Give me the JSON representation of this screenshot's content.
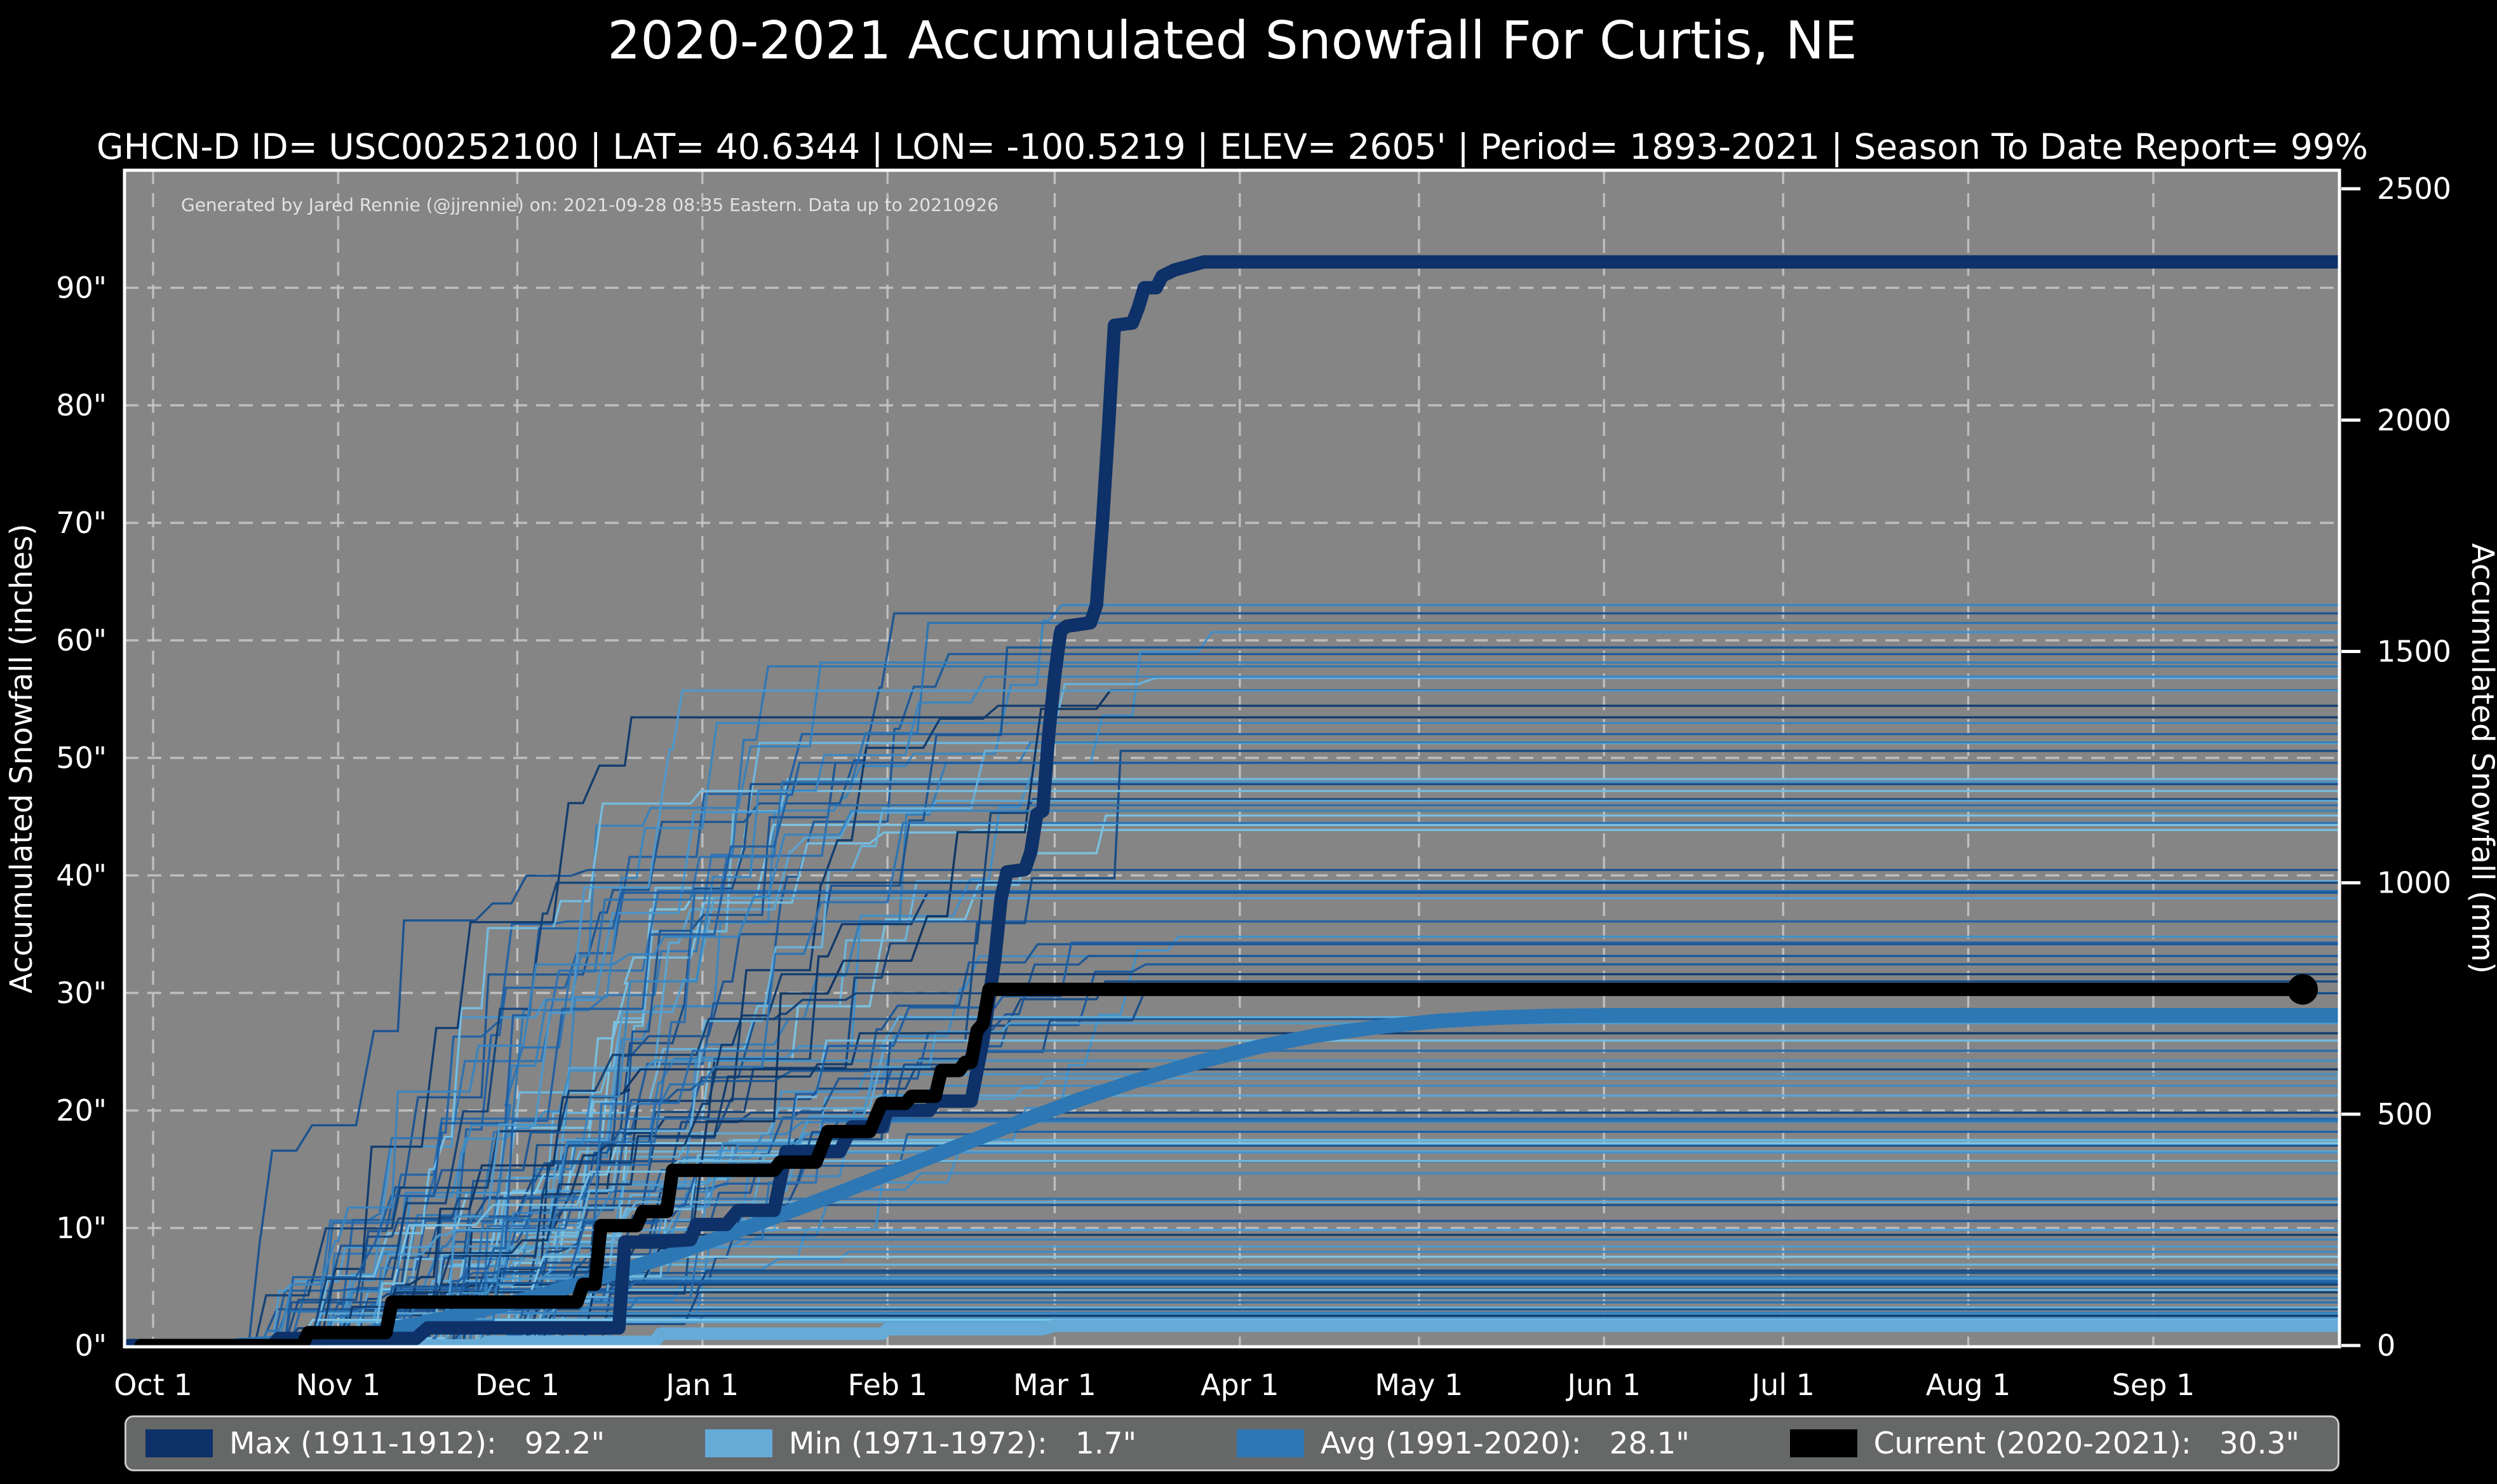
{
  "title": "2020-2021 Accumulated Snowfall For Curtis, NE",
  "subtitle": "GHCN-D ID= USC00252100 | LAT= 40.6344 | LON= -100.5219 | ELEV= 2605' | Period= 1893-2021 | Season To Date Report= 99%",
  "annotation": "Generated by Jared Rennie (@jjrennie) on: 2021-09-28 08:35 Eastern. Data up to 20210926",
  "colors": {
    "figure_bg": "#000000",
    "plot_bg": "#858585",
    "grid": "#c8c8c8",
    "spine": "#ffffff",
    "text": "#ffffff",
    "annotation_text": "#e2e2e2",
    "legend_bg": "#666767",
    "legend_border": "#c9c9c9",
    "max_line": "#0d3168",
    "min_line": "#66abd8",
    "avg_line": "#2d77b5",
    "current_line": "#000000"
  },
  "axes": {
    "left": {
      "title": "Accumulated Snowfall (inches)",
      "tick_values": [
        0,
        10,
        20,
        30,
        40,
        50,
        60,
        70,
        80,
        90
      ],
      "tick_labels": [
        "0\"",
        "10\"",
        "20\"",
        "30\"",
        "40\"",
        "50\"",
        "60\"",
        "70\"",
        "80\"",
        "90\""
      ]
    },
    "right": {
      "title": "Accumulated Snowfall (mm)",
      "tick_values": [
        0,
        500,
        1000,
        1500,
        2000,
        2500
      ],
      "tick_labels": [
        "0",
        "500",
        "1000",
        "1500",
        "2000",
        "2500"
      ]
    },
    "x": {
      "tick_days": [
        0,
        31,
        61,
        92,
        123,
        151,
        182,
        212,
        243,
        273,
        304,
        335
      ],
      "tick_labels": [
        "Oct 1",
        "Nov 1",
        "Dec 1",
        "Jan 1",
        "Feb 1",
        "Mar 1",
        "Apr 1",
        "May 1",
        "Jun 1",
        "Jul 1",
        "Aug 1",
        "Sep 1"
      ]
    }
  },
  "legend": {
    "items": [
      {
        "label": "Max (1911-1912):",
        "value": "92.2\"",
        "color": "#0d3168"
      },
      {
        "label": "Min (1971-1972):",
        "value": "1.7\"",
        "color": "#66abd8"
      },
      {
        "label": "Avg (1991-2020):",
        "value": "28.1\"",
        "color": "#2d77b5"
      },
      {
        "label": "Current (2020-2021):",
        "value": "30.3\"",
        "color": "#000000"
      }
    ]
  },
  "chart_data": {
    "type": "line",
    "x_unit": "days since Oct 1",
    "x_range_days": [
      -5,
      366
    ],
    "y_range_inches": [
      0,
      100
    ],
    "y_right_unit": "mm (25.4 mm per inch)",
    "grid": true,
    "series": [
      {
        "name": "min-1971-1972",
        "color": "#66abd8",
        "width": 20,
        "points": [
          [
            -4,
            0
          ],
          [
            55,
            0
          ],
          [
            56,
            0.3
          ],
          [
            84,
            0.3
          ],
          [
            85,
            1.0
          ],
          [
            122,
            1.0
          ],
          [
            123,
            1.4
          ],
          [
            149,
            1.4
          ],
          [
            151,
            1.7
          ],
          [
            366,
            1.7
          ]
        ]
      },
      {
        "name": "avg-1991-2020",
        "color": "#2d77b5",
        "width": 23,
        "points": [
          [
            14,
            0
          ],
          [
            25,
            0.4
          ],
          [
            35,
            1.0
          ],
          [
            45,
            1.9
          ],
          [
            55,
            3.0
          ],
          [
            65,
            4.3
          ],
          [
            75,
            5.8
          ],
          [
            85,
            7.4
          ],
          [
            95,
            9.2
          ],
          [
            105,
            11.1
          ],
          [
            115,
            13.0
          ],
          [
            125,
            15.0
          ],
          [
            135,
            17.0
          ],
          [
            145,
            19.0
          ],
          [
            155,
            20.9
          ],
          [
            165,
            22.6
          ],
          [
            175,
            24.1
          ],
          [
            185,
            25.4
          ],
          [
            195,
            26.4
          ],
          [
            205,
            27.1
          ],
          [
            215,
            27.6
          ],
          [
            225,
            27.9
          ],
          [
            235,
            28.05
          ],
          [
            245,
            28.1
          ],
          [
            366,
            28.1
          ]
        ]
      },
      {
        "name": "max-1911-1912",
        "color": "#0d3168",
        "width": 21,
        "points": [
          [
            -4,
            0
          ],
          [
            20,
            0
          ],
          [
            21,
            0.6
          ],
          [
            44,
            0.6
          ],
          [
            46,
            1.5
          ],
          [
            78,
            1.5
          ],
          [
            79,
            8.8
          ],
          [
            84,
            8.8
          ],
          [
            90,
            9.0
          ],
          [
            91,
            10.3
          ],
          [
            96,
            10.3
          ],
          [
            98,
            11.5
          ],
          [
            104,
            11.5
          ],
          [
            106,
            16.5
          ],
          [
            115,
            16.5
          ],
          [
            117,
            18.6
          ],
          [
            122,
            18.6
          ],
          [
            123,
            20.0
          ],
          [
            130,
            20.0
          ],
          [
            131,
            20.8
          ],
          [
            137,
            20.8
          ],
          [
            139,
            26.0
          ],
          [
            141,
            33.0
          ],
          [
            142,
            38.0
          ],
          [
            143,
            40.3
          ],
          [
            146,
            40.5
          ],
          [
            147,
            42.0
          ],
          [
            148,
            45.2
          ],
          [
            149,
            45.5
          ],
          [
            150,
            52.0
          ],
          [
            151,
            57.0
          ],
          [
            152,
            60.8
          ],
          [
            153,
            61.2
          ],
          [
            157,
            61.5
          ],
          [
            158,
            63.0
          ],
          [
            159,
            70.0
          ],
          [
            160,
            78.0
          ],
          [
            161,
            86.8
          ],
          [
            164,
            87.0
          ],
          [
            165,
            88.3
          ],
          [
            166,
            90.0
          ],
          [
            168,
            90.0
          ],
          [
            169,
            91.0
          ],
          [
            171,
            91.5
          ],
          [
            176,
            92.2
          ],
          [
            366,
            92.2
          ]
        ]
      },
      {
        "name": "current-2020-2021",
        "color": "#000000",
        "width": 21,
        "end_marker_radius": 24,
        "points": [
          [
            -2,
            0
          ],
          [
            25,
            0
          ],
          [
            26,
            1.1
          ],
          [
            39,
            1.1
          ],
          [
            40,
            3.7
          ],
          [
            71,
            3.7
          ],
          [
            72,
            5.2
          ],
          [
            74,
            5.2
          ],
          [
            75,
            10.2
          ],
          [
            81,
            10.2
          ],
          [
            82,
            11.4
          ],
          [
            86,
            11.4
          ],
          [
            87,
            14.9
          ],
          [
            104,
            14.9
          ],
          [
            105,
            15.6
          ],
          [
            111,
            15.6
          ],
          [
            113,
            18.2
          ],
          [
            120,
            18.2
          ],
          [
            122,
            20.6
          ],
          [
            126,
            20.6
          ],
          [
            127,
            21.2
          ],
          [
            131,
            21.2
          ],
          [
            132,
            23.4
          ],
          [
            135,
            23.4
          ],
          [
            136,
            24.1
          ],
          [
            137,
            24.1
          ],
          [
            138,
            26.8
          ],
          [
            139,
            27.4
          ],
          [
            140,
            30.3
          ],
          [
            360,
            30.3
          ]
        ]
      }
    ],
    "background_years": {
      "note": "Thin step lines: one per historical season 1893-2020, colored dark-to-light blue",
      "count": 118,
      "seed": 42,
      "line_width": 3.4,
      "color_stops": [
        "#0a3161",
        "#1d5fa5",
        "#3f8fc9",
        "#7fc8e8"
      ],
      "final_inches_range": [
        2,
        63
      ],
      "pinned_finals": [
        63,
        62.3,
        48.2,
        45.1
      ]
    }
  }
}
